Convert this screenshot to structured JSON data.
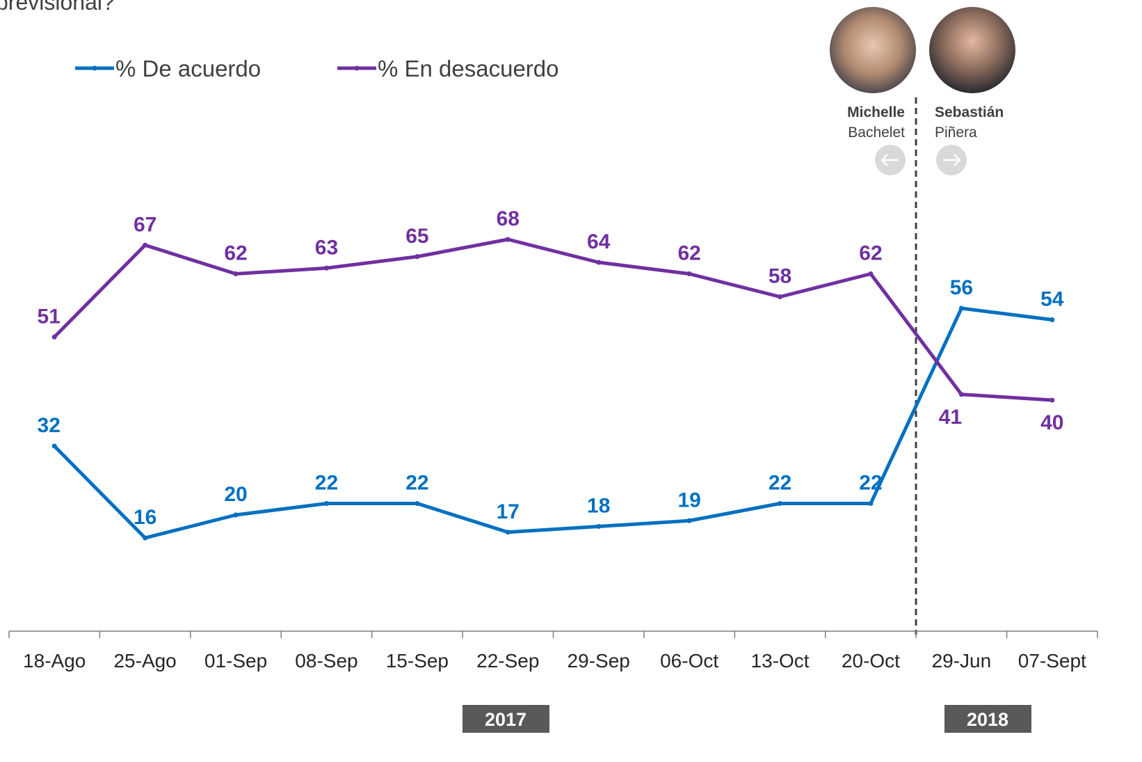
{
  "chart_data": {
    "type": "line",
    "title": "previsional?",
    "categories": [
      "18-Ago",
      "25-Ago",
      "01-Sep",
      "08-Sep",
      "15-Sep",
      "22-Sep",
      "29-Sep",
      "06-Oct",
      "13-Oct",
      "20-Oct",
      "29-Jun",
      "07-Sept"
    ],
    "series": [
      {
        "name": "% De acuerdo",
        "color": "#0070c0",
        "values": [
          32,
          16,
          20,
          22,
          22,
          17,
          18,
          19,
          22,
          22,
          56,
          54
        ]
      },
      {
        "name": "% En desacuerdo",
        "color": "#7030a0",
        "values": [
          51,
          67,
          62,
          63,
          65,
          68,
          64,
          62,
          58,
          62,
          41,
          40
        ]
      }
    ],
    "ylim": [
      0,
      100
    ],
    "annotations": {
      "before": {
        "first": "Michelle",
        "last": "Bachelet"
      },
      "after": {
        "first": "Sebastián",
        "last": "Piñera"
      },
      "years": [
        "2017",
        "2018"
      ]
    }
  }
}
